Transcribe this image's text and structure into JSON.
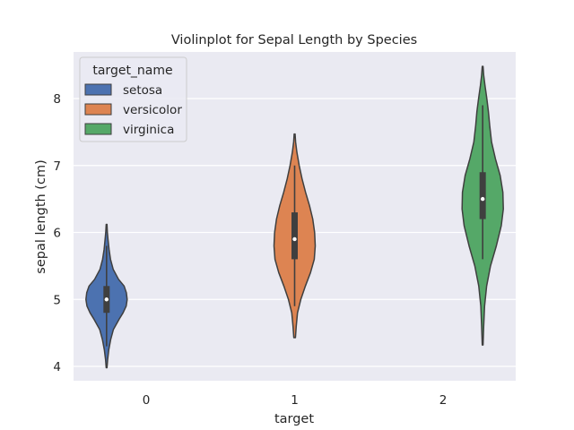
{
  "chart_data": {
    "type": "violin",
    "title": "Violinplot for Sepal Length by Species",
    "xlabel": "target",
    "ylabel": "sepal length (cm)",
    "x_categories": [
      "0",
      "1",
      "2"
    ],
    "yticks": [
      4,
      5,
      6,
      7,
      8
    ],
    "ylim": [
      3.8,
      8.7
    ],
    "grid": true,
    "legend": {
      "title": "target_name",
      "placement": "top-left"
    },
    "series": [
      {
        "name": "setosa",
        "color": "#4c72b0",
        "category": "0",
        "offset": -0.267,
        "kde_range": [
          3.98,
          6.12
        ],
        "whiskers": [
          4.3,
          5.8
        ],
        "quartiles": [
          4.8,
          5.2
        ],
        "median": 5.0,
        "profile": [
          [
            3.98,
            0.02
          ],
          [
            4.1,
            0.05
          ],
          [
            4.25,
            0.11
          ],
          [
            4.4,
            0.2
          ],
          [
            4.55,
            0.33
          ],
          [
            4.7,
            0.6
          ],
          [
            4.8,
            0.8
          ],
          [
            4.9,
            0.95
          ],
          [
            5.0,
            1.0
          ],
          [
            5.1,
            0.96
          ],
          [
            5.2,
            0.85
          ],
          [
            5.3,
            0.58
          ],
          [
            5.45,
            0.32
          ],
          [
            5.6,
            0.19
          ],
          [
            5.75,
            0.12
          ],
          [
            5.9,
            0.07
          ],
          [
            6.0,
            0.04
          ],
          [
            6.12,
            0.02
          ]
        ]
      },
      {
        "name": "versicolor",
        "color": "#dd8452",
        "category": "1",
        "offset": 0,
        "kde_range": [
          4.43,
          7.47
        ],
        "whiskers": [
          4.9,
          7.0
        ],
        "quartiles": [
          5.6,
          6.3
        ],
        "median": 5.9,
        "profile": [
          [
            4.43,
            0.04
          ],
          [
            4.6,
            0.08
          ],
          [
            4.8,
            0.14
          ],
          [
            5.0,
            0.3
          ],
          [
            5.2,
            0.52
          ],
          [
            5.4,
            0.77
          ],
          [
            5.6,
            0.95
          ],
          [
            5.8,
            1.0
          ],
          [
            6.0,
            0.97
          ],
          [
            6.2,
            0.88
          ],
          [
            6.4,
            0.72
          ],
          [
            6.6,
            0.53
          ],
          [
            6.8,
            0.36
          ],
          [
            7.0,
            0.22
          ],
          [
            7.2,
            0.11
          ],
          [
            7.35,
            0.05
          ],
          [
            7.47,
            0.02
          ]
        ]
      },
      {
        "name": "virginica",
        "color": "#55a868",
        "category": "2",
        "offset": 0.267,
        "kde_range": [
          4.32,
          8.48
        ],
        "whiskers": [
          5.6,
          7.9
        ],
        "quartiles": [
          6.2,
          6.9
        ],
        "median": 6.5,
        "profile": [
          [
            4.32,
            0.02
          ],
          [
            4.6,
            0.05
          ],
          [
            4.9,
            0.09
          ],
          [
            5.2,
            0.19
          ],
          [
            5.5,
            0.38
          ],
          [
            5.8,
            0.66
          ],
          [
            6.1,
            0.9
          ],
          [
            6.35,
            1.0
          ],
          [
            6.6,
            0.98
          ],
          [
            6.85,
            0.85
          ],
          [
            7.1,
            0.62
          ],
          [
            7.35,
            0.43
          ],
          [
            7.6,
            0.34
          ],
          [
            7.8,
            0.28
          ],
          [
            8.0,
            0.2
          ],
          [
            8.2,
            0.11
          ],
          [
            8.35,
            0.05
          ],
          [
            8.48,
            0.02
          ]
        ]
      }
    ]
  }
}
